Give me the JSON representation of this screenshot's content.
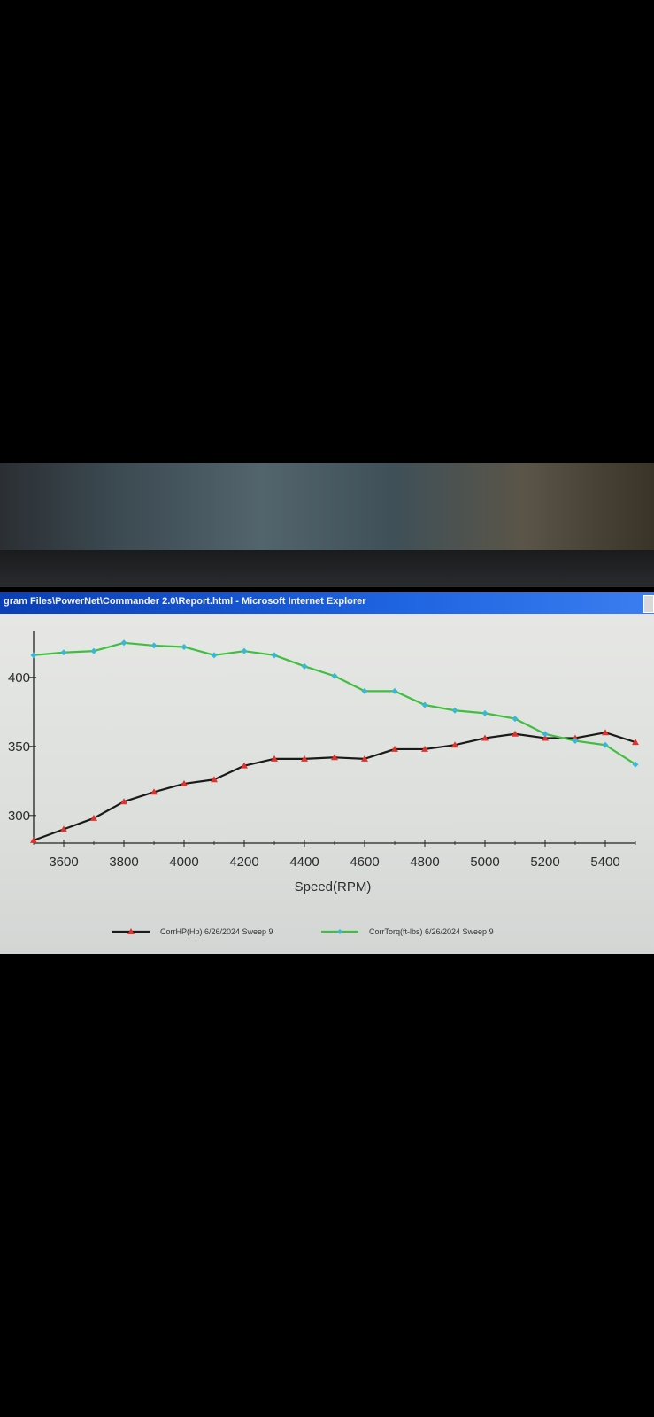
{
  "window": {
    "title": "gram Files\\PowerNet\\Commander 2.0\\Report.html - Microsoft Internet Explorer"
  },
  "chart_data": {
    "type": "line",
    "xlabel": "Speed(RPM)",
    "ylabel": "",
    "xlim": [
      3500,
      5500
    ],
    "ylim": [
      280,
      430
    ],
    "xticks": [
      3600,
      3800,
      4000,
      4200,
      4400,
      4600,
      4800,
      5000,
      5200,
      5400
    ],
    "yticks": [
      300,
      350,
      400
    ],
    "x": [
      3500,
      3600,
      3700,
      3800,
      3900,
      4000,
      4100,
      4200,
      4300,
      4400,
      4500,
      4600,
      4700,
      4800,
      4900,
      5000,
      5100,
      5200,
      5300,
      5400,
      5500
    ],
    "series": [
      {
        "name": "CorrHP(Hp) 6/26/2024 Sweep 9",
        "line_color": "#1a1a1a",
        "marker_color": "#e0332d",
        "values": [
          282,
          290,
          298,
          310,
          317,
          323,
          326,
          336,
          341,
          341,
          342,
          341,
          348,
          348,
          351,
          356,
          359,
          356,
          356,
          360,
          353
        ]
      },
      {
        "name": "CorrTorq(ft-lbs) 6/26/2024 Sweep 9",
        "line_color": "#3fbf3f",
        "marker_color": "#38b8d8",
        "values": [
          416,
          418,
          419,
          425,
          423,
          422,
          416,
          419,
          416,
          408,
          401,
          390,
          390,
          380,
          376,
          374,
          370,
          359,
          354,
          351,
          337
        ]
      }
    ],
    "legend_position": "bottom",
    "grid": false
  }
}
